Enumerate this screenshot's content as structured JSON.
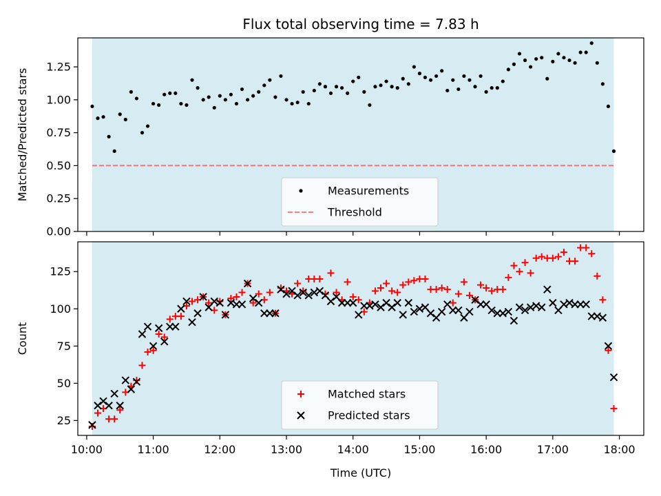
{
  "chart_data": [
    {
      "type": "scatter",
      "title": "Flux total observing time = 7.83 h",
      "xlabel": "",
      "ylabel": "Matched/Predicted stars",
      "xlim": [
        "09:52",
        "18:22"
      ],
      "ylim": [
        0,
        1.47
      ],
      "yticks": [
        0.0,
        0.25,
        0.5,
        0.75,
        1.0,
        1.25
      ],
      "ytick_labels": [
        "0.00",
        "0.25",
        "0.50",
        "0.75",
        "1.00",
        "1.25"
      ],
      "observing_window": [
        "10:05",
        "17:55"
      ],
      "threshold": 0.5,
      "legend": [
        "Measurements",
        "Threshold"
      ],
      "legend_position": "lower center",
      "series": [
        {
          "name": "Measurements",
          "marker": "dot",
          "color": "#000000",
          "x": [
            "10:05",
            "10:10",
            "10:15",
            "10:20",
            "10:25",
            "10:30",
            "10:35",
            "10:40",
            "10:45",
            "10:50",
            "10:55",
            "11:00",
            "11:05",
            "11:10",
            "11:15",
            "11:20",
            "11:25",
            "11:30",
            "11:35",
            "11:40",
            "11:45",
            "11:50",
            "11:55",
            "12:00",
            "12:05",
            "12:10",
            "12:15",
            "12:20",
            "12:25",
            "12:30",
            "12:35",
            "12:40",
            "12:45",
            "12:50",
            "12:55",
            "13:00",
            "13:05",
            "13:10",
            "13:15",
            "13:20",
            "13:25",
            "13:30",
            "13:35",
            "13:40",
            "13:45",
            "13:50",
            "13:55",
            "14:00",
            "14:05",
            "14:10",
            "14:15",
            "14:20",
            "14:25",
            "14:30",
            "14:35",
            "14:40",
            "14:45",
            "14:50",
            "14:55",
            "15:00",
            "15:05",
            "15:10",
            "15:15",
            "15:20",
            "15:25",
            "15:30",
            "15:35",
            "15:40",
            "15:45",
            "15:50",
            "15:55",
            "16:00",
            "16:05",
            "16:10",
            "16:15",
            "16:20",
            "16:25",
            "16:30",
            "16:35",
            "16:40",
            "16:45",
            "16:50",
            "16:55",
            "17:00",
            "17:05",
            "17:10",
            "17:15",
            "17:20",
            "17:25",
            "17:30",
            "17:35",
            "17:40",
            "17:45",
            "17:50",
            "17:55"
          ],
          "y": [
            0.95,
            0.86,
            0.87,
            0.72,
            0.61,
            0.89,
            0.85,
            1.06,
            1.01,
            0.75,
            0.8,
            0.97,
            0.96,
            1.04,
            1.05,
            1.05,
            0.97,
            0.96,
            1.15,
            1.09,
            1.0,
            1.02,
            0.94,
            1.03,
            1.0,
            1.04,
            0.97,
            1.08,
            1.0,
            1.03,
            1.06,
            1.11,
            1.15,
            1.02,
            1.18,
            1.0,
            0.97,
            0.98,
            1.06,
            0.97,
            1.07,
            1.12,
            1.1,
            1.05,
            1.1,
            1.09,
            1.05,
            1.14,
            1.17,
            1.06,
            0.96,
            1.1,
            1.11,
            1.14,
            1.1,
            1.09,
            1.16,
            1.12,
            1.25,
            1.2,
            1.17,
            1.15,
            1.18,
            1.22,
            1.07,
            1.15,
            1.08,
            1.18,
            1.15,
            1.1,
            1.18,
            1.06,
            1.09,
            1.09,
            1.14,
            1.23,
            1.27,
            1.35,
            1.3,
            1.25,
            1.31,
            1.32,
            1.16,
            1.29,
            1.35,
            1.32,
            1.3,
            1.28,
            1.36,
            1.36,
            1.43,
            1.28,
            1.12,
            0.95,
            0.61
          ]
        }
      ]
    },
    {
      "type": "scatter",
      "title": "",
      "xlabel": "Time (UTC)",
      "ylabel": "Count",
      "xlim": [
        "09:52",
        "18:22"
      ],
      "ylim": [
        15,
        145
      ],
      "xticks": [
        "10:00",
        "11:00",
        "12:00",
        "13:00",
        "14:00",
        "15:00",
        "16:00",
        "17:00",
        "18:00"
      ],
      "yticks": [
        25,
        50,
        75,
        100,
        125
      ],
      "observing_window": [
        "10:05",
        "17:55"
      ],
      "legend": [
        "Matched stars",
        "Predicted stars"
      ],
      "legend_position": "lower center",
      "series": [
        {
          "name": "Matched stars",
          "marker": "plus",
          "color": "#ff0000",
          "x": [
            "10:05",
            "10:10",
            "10:15",
            "10:20",
            "10:25",
            "10:30",
            "10:35",
            "10:40",
            "10:45",
            "10:50",
            "10:55",
            "11:00",
            "11:05",
            "11:10",
            "11:15",
            "11:20",
            "11:25",
            "11:30",
            "11:35",
            "11:40",
            "11:45",
            "11:50",
            "11:55",
            "12:00",
            "12:05",
            "12:10",
            "12:15",
            "12:20",
            "12:25",
            "12:30",
            "12:35",
            "12:40",
            "12:45",
            "12:50",
            "12:55",
            "13:00",
            "13:05",
            "13:10",
            "13:15",
            "13:20",
            "13:25",
            "13:30",
            "13:35",
            "13:40",
            "13:45",
            "13:50",
            "13:55",
            "14:00",
            "14:05",
            "14:10",
            "14:15",
            "14:20",
            "14:25",
            "14:30",
            "14:35",
            "14:40",
            "14:45",
            "14:50",
            "14:55",
            "15:00",
            "15:05",
            "15:10",
            "15:15",
            "15:20",
            "15:25",
            "15:30",
            "15:35",
            "15:40",
            "15:45",
            "15:50",
            "15:55",
            "16:00",
            "16:05",
            "16:10",
            "16:15",
            "16:20",
            "16:25",
            "16:30",
            "16:35",
            "16:40",
            "16:45",
            "16:50",
            "16:55",
            "17:00",
            "17:05",
            "17:10",
            "17:15",
            "17:20",
            "17:25",
            "17:30",
            "17:35",
            "17:40",
            "17:45",
            "17:50",
            "17:55"
          ],
          "y": [
            21,
            30,
            33,
            26,
            26,
            32,
            44,
            48,
            52,
            62,
            71,
            72,
            83,
            81,
            93,
            95,
            95,
            102,
            105,
            106,
            108,
            104,
            99,
            105,
            96,
            107,
            108,
            111,
            117,
            104,
            110,
            106,
            111,
            97,
            114,
            112,
            110,
            117,
            112,
            120,
            120,
            120,
            110,
            124,
            111,
            106,
            118,
            108,
            106,
            98,
            104,
            112,
            114,
            117,
            112,
            111,
            116,
            118,
            119,
            120,
            120,
            113,
            113,
            114,
            113,
            104,
            110,
            118,
            109,
            106,
            116,
            114,
            112,
            113,
            113,
            121,
            129,
            125,
            131,
            124,
            134,
            135,
            134,
            134,
            135,
            138,
            132,
            132,
            141,
            141,
            137,
            122,
            106,
            72,
            33
          ]
        },
        {
          "name": "Predicted stars",
          "marker": "x",
          "color": "#000000",
          "x": [
            "10:05",
            "10:10",
            "10:15",
            "10:20",
            "10:25",
            "10:30",
            "10:35",
            "10:40",
            "10:45",
            "10:50",
            "10:55",
            "11:00",
            "11:05",
            "11:10",
            "11:15",
            "11:20",
            "11:25",
            "11:30",
            "11:35",
            "11:40",
            "11:45",
            "11:50",
            "11:55",
            "12:00",
            "12:05",
            "12:10",
            "12:15",
            "12:20",
            "12:25",
            "12:30",
            "12:35",
            "12:40",
            "12:45",
            "12:50",
            "12:55",
            "13:00",
            "13:05",
            "13:10",
            "13:15",
            "13:20",
            "13:25",
            "13:30",
            "13:35",
            "13:40",
            "13:45",
            "13:50",
            "13:55",
            "14:00",
            "14:05",
            "14:10",
            "14:15",
            "14:20",
            "14:25",
            "14:30",
            "14:35",
            "14:40",
            "14:45",
            "14:50",
            "14:55",
            "15:00",
            "15:05",
            "15:10",
            "15:15",
            "15:20",
            "15:25",
            "15:30",
            "15:35",
            "15:40",
            "15:45",
            "15:50",
            "15:55",
            "16:00",
            "16:05",
            "16:10",
            "16:15",
            "16:20",
            "16:25",
            "16:30",
            "16:35",
            "16:40",
            "16:45",
            "16:50",
            "16:55",
            "17:00",
            "17:05",
            "17:10",
            "17:15",
            "17:20",
            "17:25",
            "17:30",
            "17:35",
            "17:40",
            "17:45",
            "17:50",
            "17:55"
          ],
          "y": [
            22,
            35,
            38,
            35,
            43,
            35,
            52,
            46,
            51,
            83,
            88,
            75,
            87,
            78,
            88,
            88,
            100,
            105,
            91,
            97,
            108,
            101,
            105,
            104,
            96,
            104,
            103,
            103,
            117,
            107,
            104,
            97,
            97,
            97,
            113,
            110,
            112,
            109,
            111,
            109,
            111,
            112,
            109,
            105,
            108,
            104,
            104,
            104,
            96,
            102,
            102,
            103,
            101,
            104,
            101,
            104,
            96,
            104,
            98,
            100,
            101,
            97,
            94,
            98,
            103,
            99,
            99,
            94,
            98,
            106,
            103,
            103,
            99,
            97,
            97,
            98,
            92,
            101,
            99,
            101,
            102,
            101,
            113,
            104,
            99,
            103,
            104,
            103,
            103,
            103,
            95,
            95,
            94,
            75,
            54
          ]
        }
      ]
    }
  ]
}
